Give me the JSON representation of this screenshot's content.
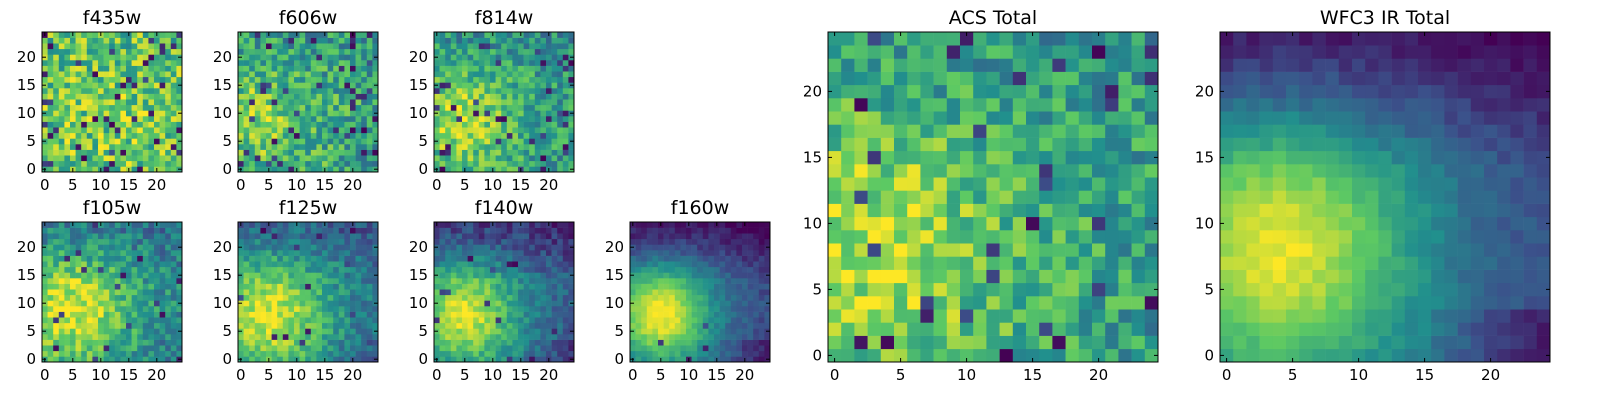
{
  "chart_data": [
    {
      "type": "heatmap",
      "title": "f435w",
      "size": 25,
      "xticks": [
        "0",
        "5",
        "10",
        "15",
        "20"
      ],
      "yticks": [
        "0",
        "5",
        "10",
        "15",
        "20"
      ],
      "smooth": 0.05,
      "hot": [
        12,
        8
      ],
      "spread": 8,
      "hotw": 0.05,
      "base": 0.72,
      "noise": 0.26,
      "holes": 0.07,
      "seed": 11
    },
    {
      "type": "heatmap",
      "title": "f606w",
      "size": 25,
      "xticks": [
        "0",
        "5",
        "10",
        "15",
        "20"
      ],
      "yticks": [
        "0",
        "5",
        "10",
        "15",
        "20"
      ],
      "smooth": 0.15,
      "hot": [
        4,
        9
      ],
      "spread": 6,
      "hotw": 0.22,
      "base": 0.6,
      "noise": 0.24,
      "holes": 0.07,
      "seed": 23
    },
    {
      "type": "heatmap",
      "title": "f814w",
      "size": 25,
      "xticks": [
        "0",
        "5",
        "10",
        "15",
        "20"
      ],
      "yticks": [
        "0",
        "5",
        "10",
        "15",
        "20"
      ],
      "smooth": 0.2,
      "hot": [
        4,
        9
      ],
      "spread": 6,
      "hotw": 0.3,
      "base": 0.58,
      "noise": 0.22,
      "holes": 0.06,
      "seed": 37
    },
    {
      "type": "heatmap",
      "title": "f105w",
      "size": 25,
      "xticks": [
        "0",
        "5",
        "10",
        "15",
        "20"
      ],
      "yticks": [
        "0",
        "5",
        "10",
        "15",
        "20"
      ],
      "smooth": 0.35,
      "hot": [
        5,
        9
      ],
      "spread": 7,
      "hotw": 0.45,
      "base": 0.5,
      "noise": 0.2,
      "holes": 0.04,
      "seed": 41
    },
    {
      "type": "heatmap",
      "title": "f125w",
      "size": 25,
      "xticks": [
        "0",
        "5",
        "10",
        "15",
        "20"
      ],
      "yticks": [
        "0",
        "5",
        "10",
        "15",
        "20"
      ],
      "smooth": 0.45,
      "hot": [
        5,
        8
      ],
      "spread": 7,
      "hotw": 0.5,
      "base": 0.45,
      "noise": 0.18,
      "holes": 0.03,
      "seed": 53
    },
    {
      "type": "heatmap",
      "title": "f140w",
      "size": 25,
      "xticks": [
        "0",
        "5",
        "10",
        "15",
        "20"
      ],
      "yticks": [
        "0",
        "5",
        "10",
        "15",
        "20"
      ],
      "smooth": 0.55,
      "hot": [
        5,
        8
      ],
      "spread": 6.5,
      "hotw": 0.6,
      "base": 0.35,
      "noise": 0.15,
      "holes": 0.02,
      "seed": 67
    },
    {
      "type": "heatmap",
      "title": "f160w",
      "size": 25,
      "xticks": [
        "0",
        "5",
        "10",
        "15",
        "20"
      ],
      "yticks": [
        "0",
        "5",
        "10",
        "15",
        "20"
      ],
      "smooth": 0.7,
      "hot": [
        5,
        8
      ],
      "spread": 6,
      "hotw": 0.7,
      "base": 0.3,
      "noise": 0.1,
      "holes": 0.01,
      "seed": 79
    },
    {
      "type": "heatmap",
      "title": "ACS Total",
      "size": 25,
      "xticks": [
        "0",
        "5",
        "10",
        "15",
        "20"
      ],
      "yticks": [
        "0",
        "5",
        "10",
        "15",
        "20"
      ],
      "smooth": 0.2,
      "hot": [
        3,
        8
      ],
      "spread": 7,
      "hotw": 0.28,
      "base": 0.6,
      "noise": 0.22,
      "holes": 0.05,
      "seed": 97
    },
    {
      "type": "heatmap",
      "title": "WFC3 IR Total",
      "size": 25,
      "xticks": [
        "0",
        "5",
        "10",
        "15",
        "20"
      ],
      "yticks": [
        "0",
        "5",
        "10",
        "15",
        "20"
      ],
      "smooth": 0.75,
      "hot": [
        4,
        8
      ],
      "spread": 7,
      "hotw": 0.65,
      "base": 0.32,
      "noise": 0.08,
      "holes": 0.0,
      "seed": 101
    }
  ],
  "colormap": [
    "#440154",
    "#3b528b",
    "#21908d",
    "#5dc963",
    "#fde725"
  ]
}
